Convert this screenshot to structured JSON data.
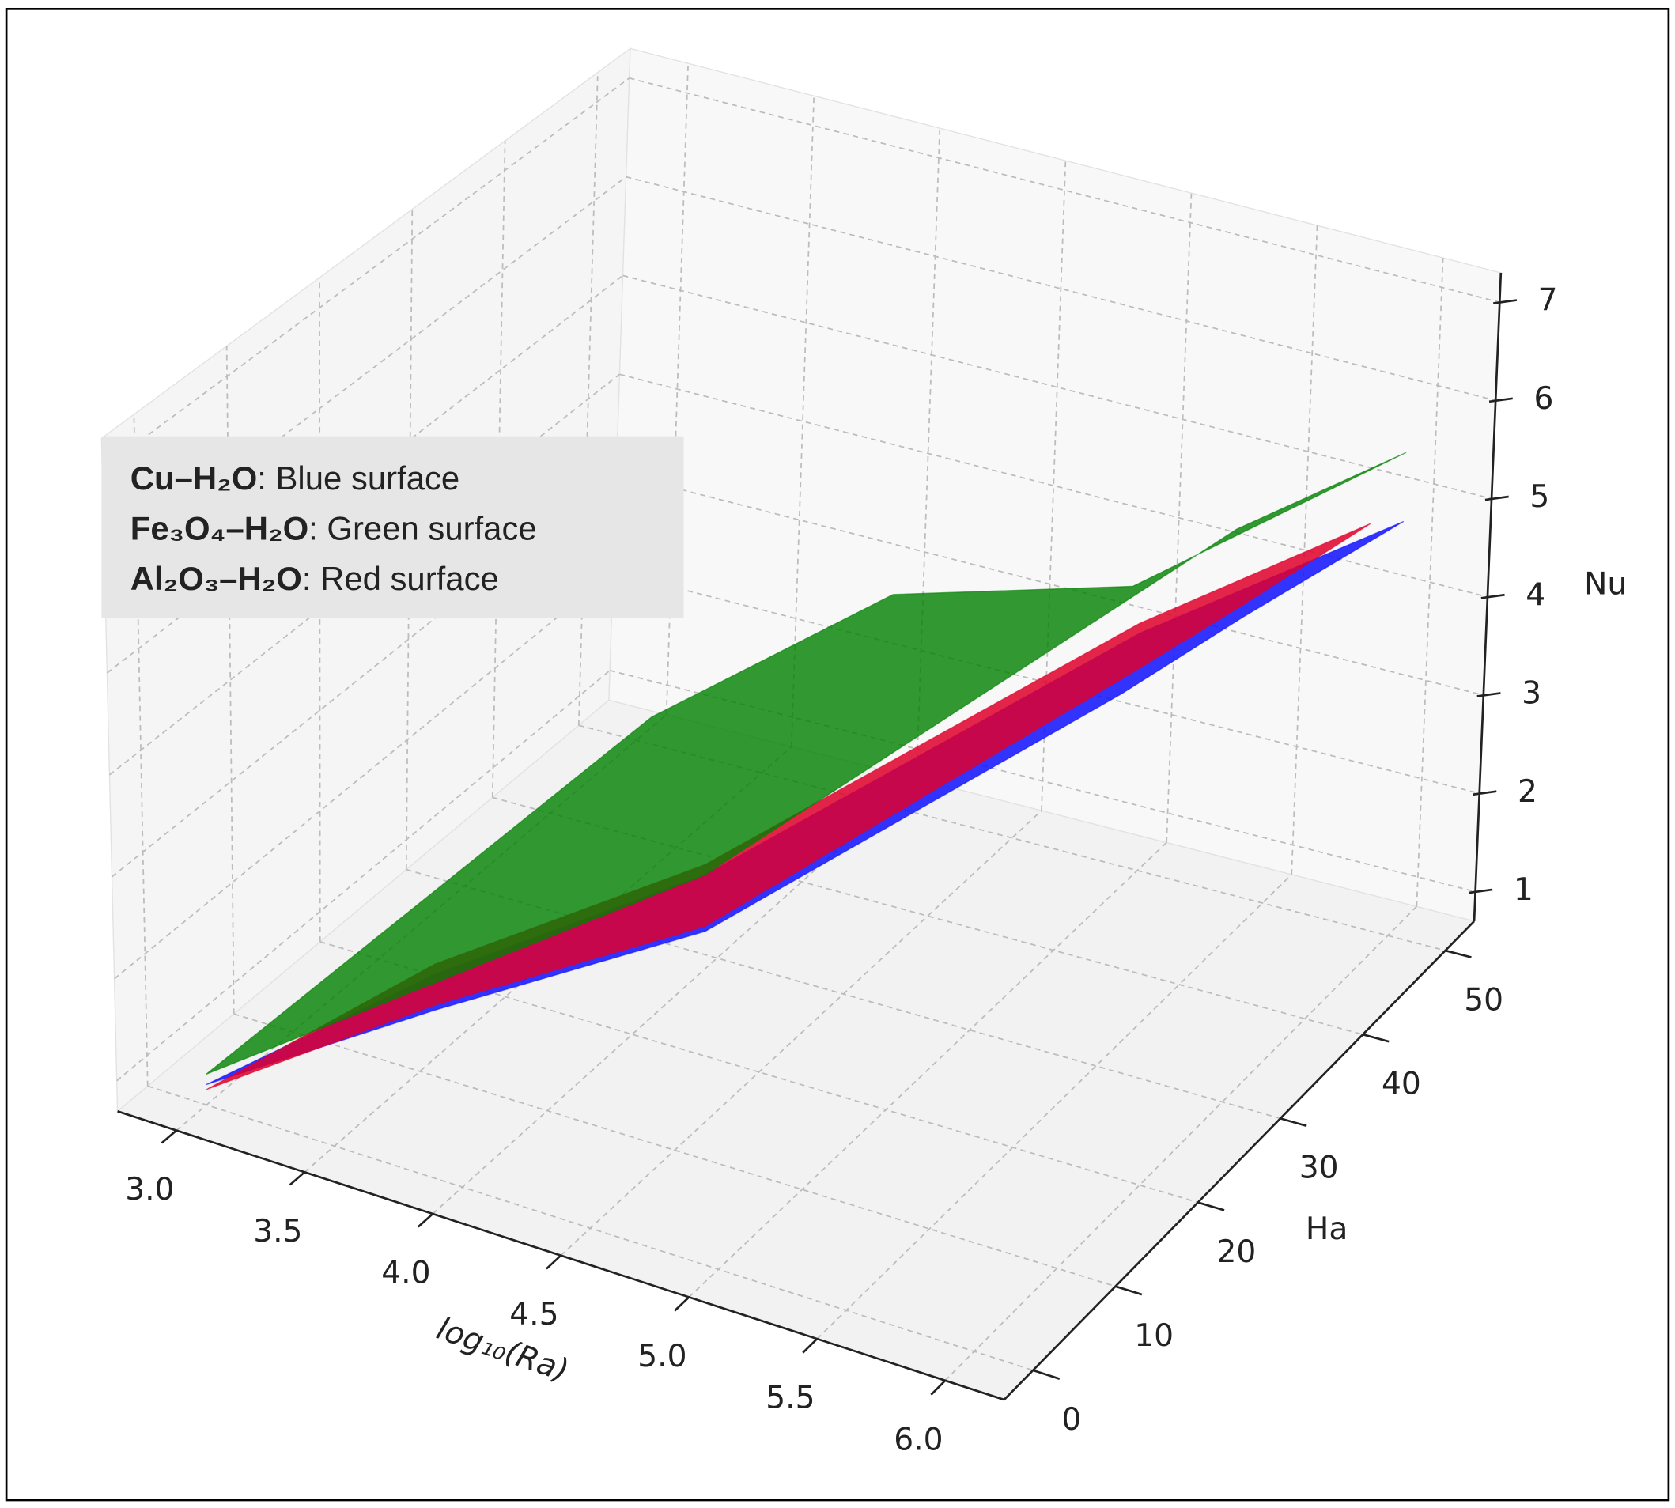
{
  "chart_data": {
    "type": "surface3d",
    "xlabel": "log₁₀(Ra)",
    "ylabel": "Ha",
    "zlabel": "Nu",
    "xlim": [
      2.77,
      6.23
    ],
    "ylim": [
      -3.5,
      53.5
    ],
    "zlim": [
      0.7,
      7.3
    ],
    "xticks": [
      {
        "value": 3,
        "label": "3.0"
      },
      3.5,
      {
        "value": 4,
        "label": "4.0"
      },
      4.5,
      {
        "value": 5,
        "label": "5.0"
      },
      5.5,
      {
        "value": 6,
        "label": "6.0"
      }
    ],
    "yticks": [
      0,
      10,
      20,
      30,
      40,
      50
    ],
    "zticks": [
      1,
      2,
      3,
      4,
      5,
      6,
      7
    ],
    "grid": true,
    "series": [
      {
        "name": "Cu–H₂O",
        "description": ": Blue surface",
        "color": "#1010ff",
        "x": [
          3,
          3.9,
          4.95,
          5.5,
          6,
          6,
          5.5,
          4.95,
          3.9
        ],
        "y": [
          0,
          0,
          0,
          34,
          50,
          31,
          32,
          0,
          0
        ],
        "z": [
          0.9,
          2.7,
          4.5,
          4.7,
          4.9,
          5.45,
          4.25,
          3.95,
          2.35
        ]
      },
      {
        "name": "Fe₃O₄–H₂O",
        "description": ": Green surface",
        "color": "#008000",
        "x": [
          3,
          4,
          4.8,
          5.6,
          6,
          5.9,
          4.95
        ],
        "y": [
          0,
          22,
          26,
          30,
          50,
          33,
          0
        ],
        "z": [
          1.0,
          3.7,
          5.2,
          5.55,
          5.6,
          6.1,
          4.5
        ]
      },
      {
        "name": "Al₂O₃–H₂O",
        "description": ": Red surface",
        "color": "#e0002c",
        "x": [
          3,
          3.9,
          4.95,
          5.5,
          6,
          6,
          5.5,
          4.95,
          3.9
        ],
        "y": [
          0,
          0,
          0,
          34,
          46,
          30,
          32,
          0,
          0
        ],
        "z": [
          0.85,
          2.8,
          4.6,
          4.8,
          5.2,
          5.6,
          4.4,
          4.0,
          2.4
        ]
      }
    ]
  }
}
